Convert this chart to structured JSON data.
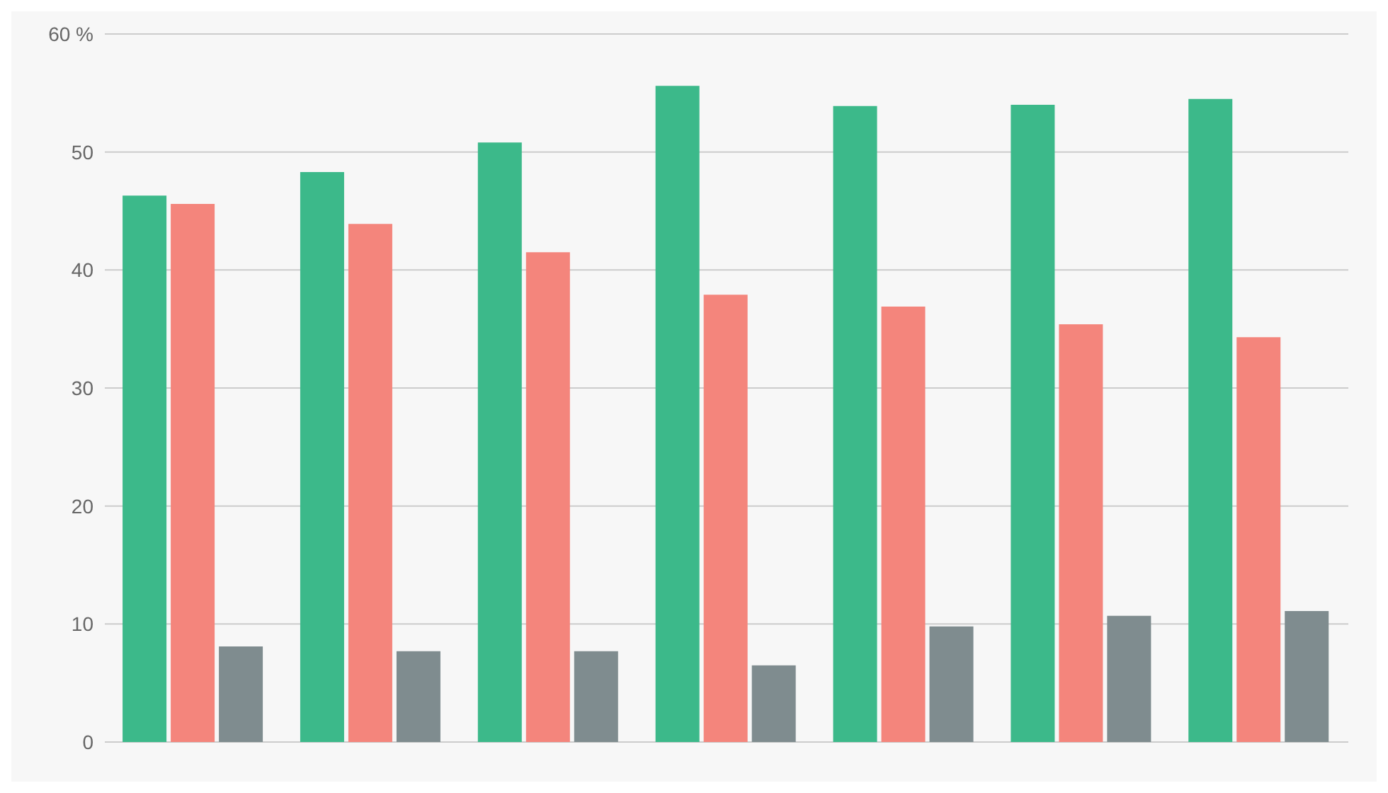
{
  "chart_data": {
    "type": "bar",
    "categories": [
      null,
      null,
      null,
      null,
      null,
      null,
      null
    ],
    "series": [
      {
        "color": "#3cb98a",
        "values": [
          46.3,
          48.3,
          50.8,
          55.6,
          53.9,
          54.0,
          54.5
        ]
      },
      {
        "color": "#f4857c",
        "values": [
          45.6,
          43.9,
          41.5,
          37.9,
          36.9,
          35.4,
          34.3
        ]
      },
      {
        "color": "#7f8c8f",
        "values": [
          8.1,
          7.7,
          7.7,
          6.5,
          9.8,
          10.7,
          11.1
        ]
      }
    ],
    "ylim": [
      0,
      60
    ],
    "yticks": [
      0,
      10,
      20,
      30,
      40,
      50,
      {
        "value": 60,
        "label": "60 %"
      }
    ],
    "grid": "y",
    "legend": false
  }
}
